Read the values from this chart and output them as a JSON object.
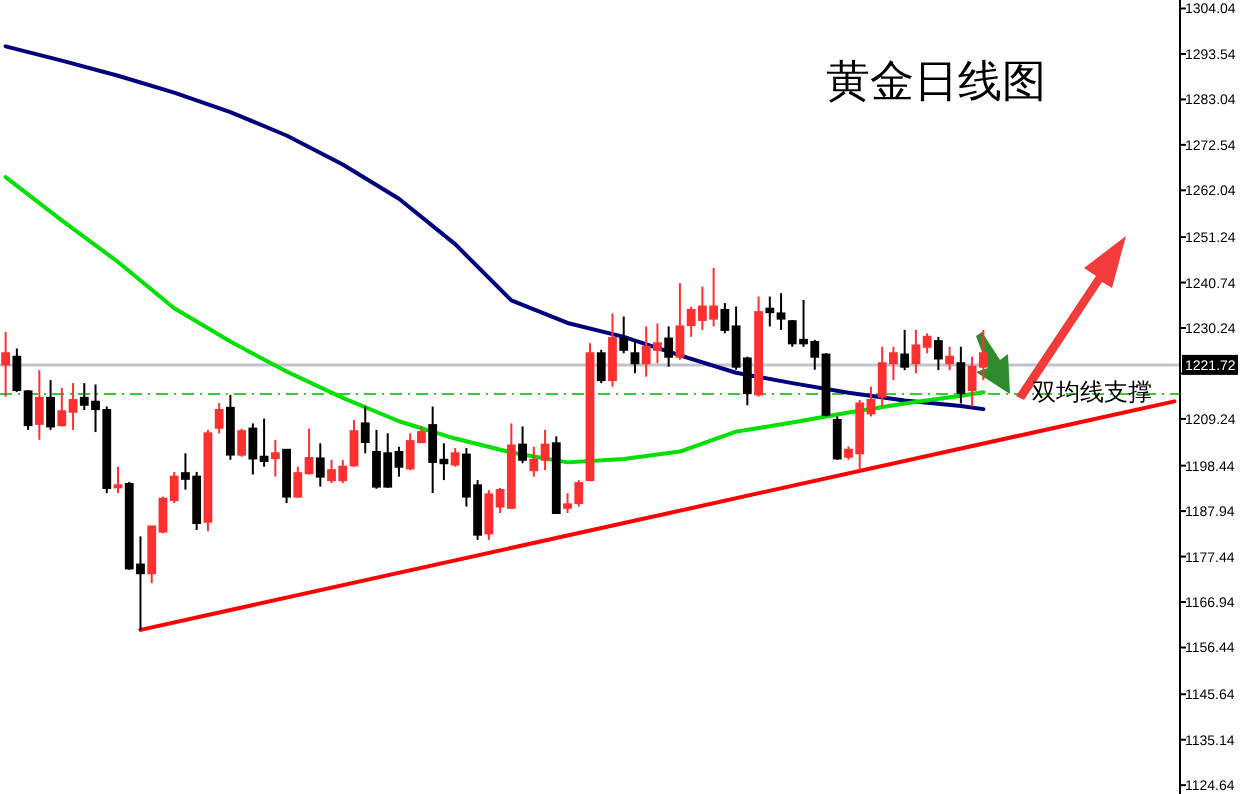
{
  "chart_data": {
    "type": "candlestick",
    "title": "黄金日线图",
    "annotations": [
      "双均线支撑"
    ],
    "categories": [
      null,
      null,
      null,
      null,
      null,
      null,
      null,
      null,
      null,
      null,
      null,
      null,
      null,
      null,
      null,
      null,
      null,
      null,
      null,
      null,
      null,
      null,
      null,
      null,
      null,
      null,
      null,
      null,
      null,
      null,
      null,
      null,
      null,
      null,
      null,
      null,
      null,
      null,
      null,
      null,
      null,
      null,
      null,
      null,
      null,
      null,
      null,
      null,
      null,
      null,
      null,
      null,
      null,
      null,
      null,
      null,
      null,
      null,
      null,
      null,
      null,
      null,
      null,
      null,
      null,
      null,
      null,
      null,
      null,
      null,
      null,
      null,
      null,
      null,
      null,
      null,
      null,
      null,
      null,
      null,
      null,
      null,
      null,
      null,
      null,
      null,
      null,
      null,
      null,
      null,
      null,
      null,
      null,
      null,
      null,
      null,
      null,
      null,
      null,
      null,
      null,
      null,
      null,
      null,
      null
    ],
    "ohlc": [
      [
        1221.8,
        1229.3,
        1214.4,
        1224.4
      ],
      [
        1223.6,
        1225.5,
        1215.5,
        1215.9
      ],
      [
        1215.6,
        1215.9,
        1206.7,
        1207.8
      ],
      [
        1208.1,
        1220.5,
        1204.4,
        1214.1
      ],
      [
        1214.1,
        1218.2,
        1206.7,
        1207.5
      ],
      [
        1207.8,
        1216.4,
        1207.5,
        1211.0
      ],
      [
        1210.9,
        1217.5,
        1206.7,
        1213.6
      ],
      [
        1214.1,
        1217.5,
        1211.3,
        1212.5
      ],
      [
        1213.2,
        1217.2,
        1206.2,
        1211.5
      ],
      [
        1211.3,
        1212.1,
        1192.1,
        1193.3
      ],
      [
        1193.6,
        1198.2,
        1192.1,
        1193.9
      ],
      [
        1194.2,
        1194.7,
        1174.4,
        1174.7
      ],
      [
        1175.6,
        1182.1,
        1160.5,
        1173.6
      ],
      [
        1173.6,
        1184.4,
        1171.3,
        1184.4
      ],
      [
        1183.2,
        1191.3,
        1182.8,
        1190.8
      ],
      [
        1190.5,
        1197.0,
        1189.8,
        1195.9
      ],
      [
        1196.7,
        1201.3,
        1192.9,
        1195.4
      ],
      [
        1195.9,
        1197.0,
        1183.6,
        1185.2
      ],
      [
        1185.5,
        1206.7,
        1183.3,
        1205.9
      ],
      [
        1207.2,
        1212.9,
        1205.9,
        1211.3
      ],
      [
        1211.8,
        1214.8,
        1199.8,
        1201.0
      ],
      [
        1201.0,
        1207.0,
        1200.5,
        1206.4
      ],
      [
        1207.0,
        1208.2,
        1196.4,
        1200.1
      ],
      [
        1200.5,
        1209.3,
        1198.2,
        1199.5
      ],
      [
        1200.2,
        1204.4,
        1195.9,
        1201.3
      ],
      [
        1202.1,
        1202.1,
        1189.8,
        1191.3
      ],
      [
        1191.3,
        1198.2,
        1191.0,
        1196.7
      ],
      [
        1196.7,
        1207.0,
        1196.4,
        1200.2
      ],
      [
        1200.1,
        1203.6,
        1193.6,
        1195.9
      ],
      [
        1195.1,
        1199.8,
        1194.4,
        1197.4
      ],
      [
        1195.1,
        1199.8,
        1194.4,
        1198.2
      ],
      [
        1198.5,
        1209.0,
        1198.2,
        1206.4
      ],
      [
        1208.2,
        1212.1,
        1201.3,
        1203.9
      ],
      [
        1201.6,
        1206.7,
        1193.1,
        1193.6
      ],
      [
        1201.3,
        1205.9,
        1193.3,
        1193.6
      ],
      [
        1201.6,
        1202.8,
        1195.9,
        1198.2
      ],
      [
        1197.8,
        1205.9,
        1197.4,
        1204.1
      ],
      [
        1203.9,
        1207.5,
        1203.6,
        1206.2
      ],
      [
        1207.8,
        1212.1,
        1192.1,
        1199.3
      ],
      [
        1199.8,
        1203.6,
        1195.1,
        1199.0
      ],
      [
        1198.7,
        1202.5,
        1198.2,
        1201.3
      ],
      [
        1201.0,
        1202.5,
        1189.0,
        1191.3
      ],
      [
        1193.9,
        1195.1,
        1181.3,
        1182.5
      ],
      [
        1182.8,
        1192.8,
        1181.3,
        1191.8
      ],
      [
        1189.0,
        1193.3,
        1187.5,
        1192.8
      ],
      [
        1188.7,
        1208.2,
        1188.7,
        1203.1
      ],
      [
        1203.3,
        1207.5,
        1199.0,
        1199.8
      ],
      [
        1197.4,
        1202.8,
        1195.9,
        1199.8
      ],
      [
        1199.8,
        1206.7,
        1197.4,
        1203.3
      ],
      [
        1203.6,
        1205.2,
        1187.5,
        1187.5
      ],
      [
        1188.7,
        1192.1,
        1187.5,
        1189.5
      ],
      [
        1189.8,
        1195.1,
        1189.0,
        1194.4
      ],
      [
        1195.1,
        1226.7,
        1195.1,
        1224.4
      ],
      [
        1224.4,
        1225.2,
        1217.5,
        1218.2
      ],
      [
        1218.2,
        1233.6,
        1216.7,
        1227.9
      ],
      [
        1227.8,
        1232.9,
        1224.4,
        1225.2
      ],
      [
        1224.4,
        1227.5,
        1219.8,
        1222.1
      ],
      [
        1222.1,
        1230.6,
        1219.0,
        1225.9
      ],
      [
        1225.2,
        1231.3,
        1222.1,
        1226.7
      ],
      [
        1227.8,
        1230.6,
        1221.3,
        1223.6
      ],
      [
        1223.6,
        1240.6,
        1222.9,
        1230.6
      ],
      [
        1230.9,
        1235.2,
        1228.2,
        1234.4
      ],
      [
        1232.1,
        1239.8,
        1229.8,
        1235.2
      ],
      [
        1232.4,
        1244.1,
        1230.6,
        1235.2
      ],
      [
        1234.4,
        1236.0,
        1229.0,
        1229.8
      ],
      [
        1230.6,
        1235.2,
        1220.6,
        1221.3
      ],
      [
        1223.2,
        1223.6,
        1212.4,
        1215.2
      ],
      [
        1214.9,
        1237.5,
        1214.4,
        1233.9
      ],
      [
        1234.7,
        1237.5,
        1230.6,
        1233.9
      ],
      [
        1233.6,
        1238.3,
        1229.8,
        1232.4
      ],
      [
        1231.8,
        1232.1,
        1225.9,
        1226.7
      ],
      [
        1227.5,
        1236.7,
        1225.9,
        1226.7
      ],
      [
        1227.0,
        1227.5,
        1220.6,
        1223.6
      ],
      [
        1224.1,
        1224.4,
        1209.8,
        1210.2
      ],
      [
        1209.0,
        1209.8,
        1199.8,
        1200.1
      ],
      [
        1200.5,
        1202.9,
        1199.8,
        1202.1
      ],
      [
        1201.3,
        1213.6,
        1197.5,
        1212.8
      ],
      [
        1210.5,
        1216.7,
        1209.8,
        1213.6
      ],
      [
        1214.4,
        1225.9,
        1212.1,
        1222.1
      ],
      [
        1222.1,
        1225.9,
        1218.2,
        1224.4
      ],
      [
        1224.1,
        1229.8,
        1220.5,
        1221.3
      ],
      [
        1222.1,
        1229.8,
        1219.8,
        1226.2
      ],
      [
        1225.9,
        1229.0,
        1224.4,
        1228.2
      ],
      [
        1227.2,
        1228.2,
        1220.5,
        1223.2
      ],
      [
        1222.1,
        1225.9,
        1220.5,
        1223.6
      ],
      [
        1222.1,
        1225.9,
        1212.8,
        1215.2
      ],
      [
        1215.9,
        1223.6,
        1212.1,
        1221.3
      ],
      [
        1221.3,
        1229.8,
        1218.2,
        1224.4
      ],
      null,
      null,
      null,
      null,
      null,
      null,
      null,
      null,
      null,
      null,
      null,
      null,
      null,
      null,
      null,
      null,
      null
    ],
    "series": [
      {
        "type": "line",
        "color": "#00007f",
        "values": [
          1295.3,
          null,
          null,
          null,
          null,
          1292.0,
          null,
          null,
          null,
          null,
          1288.5,
          null,
          null,
          null,
          null,
          1284.6,
          null,
          null,
          null,
          null,
          1280.1,
          null,
          null,
          null,
          null,
          1274.7,
          null,
          null,
          null,
          null,
          1268.0,
          null,
          null,
          null,
          null,
          1260.1,
          null,
          null,
          null,
          null,
          1249.6,
          null,
          null,
          null,
          null,
          1236.6,
          null,
          null,
          null,
          null,
          1231.4,
          null,
          null,
          null,
          null,
          1228.2,
          null,
          null,
          null,
          null,
          1223.9,
          null,
          null,
          null,
          null,
          1219.9,
          null,
          null,
          null,
          null,
          1217.5,
          null,
          null,
          null,
          null,
          1215.3,
          null,
          null,
          null,
          null,
          1213.5,
          null,
          null,
          null,
          null,
          1212.2,
          null,
          1211.5,
          null,
          null,
          null,
          null,
          null,
          null,
          null,
          null,
          null,
          null,
          null,
          null,
          null,
          null,
          null,
          null,
          null
        ]
      },
      {
        "type": "line",
        "color": "#00e000",
        "values": [
          1265.1,
          null,
          null,
          null,
          null,
          1255.1,
          null,
          null,
          null,
          null,
          1245.5,
          null,
          null,
          null,
          null,
          1234.8,
          null,
          null,
          null,
          null,
          1227.1,
          null,
          null,
          null,
          null,
          1220.2,
          null,
          null,
          null,
          null,
          1214.1,
          null,
          null,
          null,
          null,
          1208.7,
          null,
          null,
          null,
          null,
          1204.7,
          null,
          null,
          null,
          null,
          1201.5,
          null,
          null,
          null,
          null,
          1199.2,
          null,
          null,
          null,
          null,
          1200.0,
          null,
          null,
          null,
          null,
          1201.7,
          null,
          null,
          null,
          null,
          1206.3,
          null,
          null,
          null,
          null,
          1208.4,
          null,
          null,
          null,
          null,
          1210.7,
          null,
          null,
          null,
          null,
          1212.8,
          null,
          null,
          null,
          null,
          1214.6,
          null,
          1215.4,
          null,
          null,
          null,
          null,
          null,
          null,
          null,
          null,
          null,
          null,
          null,
          null,
          null,
          null,
          null,
          null,
          null
        ]
      },
      {
        "type": "line",
        "color": "#ff0000",
        "values": [
          null,
          null,
          null,
          null,
          null,
          null,
          null,
          null,
          null,
          null,
          null,
          null,
          1160.5,
          null,
          null,
          null,
          null,
          null,
          null,
          null,
          null,
          null,
          null,
          null,
          null,
          null,
          null,
          null,
          null,
          null,
          null,
          null,
          null,
          null,
          null,
          null,
          null,
          null,
          null,
          null,
          null,
          null,
          null,
          null,
          null,
          null,
          null,
          null,
          null,
          null,
          null,
          null,
          null,
          null,
          null,
          null,
          null,
          null,
          null,
          null,
          null,
          null,
          null,
          null,
          null,
          null,
          null,
          null,
          null,
          null,
          null,
          null,
          null,
          null,
          null,
          null,
          null,
          null,
          null,
          null,
          null,
          null,
          null,
          null,
          null,
          null,
          null,
          null,
          null,
          null,
          null,
          null,
          null,
          null,
          null,
          null,
          null,
          null,
          null,
          null,
          null,
          null,
          null,
          null,
          1213.3
        ]
      }
    ],
    "ref_lines": [
      {
        "axis": "y",
        "value": 1221.72,
        "label": "1221.72",
        "color": "#c0c4cc"
      },
      {
        "axis": "y",
        "value": 1215.0,
        "color": "#33cc33",
        "line_style": "dashed"
      }
    ],
    "ylim": [
      1122.6,
      1306.0
    ],
    "yticks": [
      1304.04,
      1293.54,
      1283.04,
      1272.54,
      1262.04,
      1251.24,
      1240.74,
      1230.24,
      {
        "value": 1219.74,
        "label": null
      },
      1209.24,
      1198.44,
      1187.94,
      1177.44,
      1166.94,
      1156.44,
      1145.64,
      1135.14,
      1124.64
    ],
    "tick_labels": "y",
    "grid": false
  }
}
